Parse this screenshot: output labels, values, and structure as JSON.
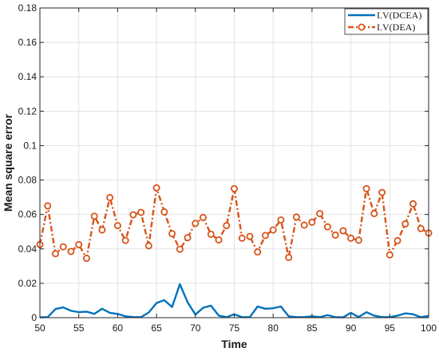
{
  "chart_data": {
    "type": "line",
    "title": "",
    "xlabel": "Time",
    "ylabel": "Mean square error",
    "xlim": [
      50,
      100
    ],
    "ylim": [
      0,
      0.18
    ],
    "xticks": [
      50,
      55,
      60,
      65,
      70,
      75,
      80,
      85,
      90,
      95,
      100
    ],
    "yticks": [
      0,
      0.02,
      0.04,
      0.06,
      0.08,
      0.1,
      0.12,
      0.14,
      0.16,
      0.18
    ],
    "xtick_labels": [
      "50",
      "55",
      "60",
      "65",
      "70",
      "75",
      "80",
      "85",
      "90",
      "95",
      "100"
    ],
    "ytick_labels": [
      "0",
      "0.02",
      "0.04",
      "0.06",
      "0.08",
      "0.1",
      "0.12",
      "0.14",
      "0.16",
      "0.18"
    ],
    "grid": true,
    "legend_position": "top-right",
    "x": [
      50,
      51,
      52,
      53,
      54,
      55,
      56,
      57,
      58,
      59,
      60,
      61,
      62,
      63,
      64,
      65,
      66,
      67,
      68,
      69,
      70,
      71,
      72,
      73,
      74,
      75,
      76,
      77,
      78,
      79,
      80,
      81,
      82,
      83,
      84,
      85,
      86,
      87,
      88,
      89,
      90,
      91,
      92,
      93,
      94,
      95,
      96,
      97,
      98,
      99,
      100
    ],
    "series": [
      {
        "name": "I.V(DCEA)",
        "color": "#0072BD",
        "style": "solid",
        "marker": "none",
        "values": [
          0.0002,
          0.0003,
          0.005,
          0.006,
          0.004,
          0.0032,
          0.0035,
          0.0022,
          0.0052,
          0.0028,
          0.0022,
          0.0008,
          0.0004,
          0.0003,
          0.003,
          0.0085,
          0.0102,
          0.0062,
          0.0195,
          0.009,
          0.0018,
          0.0058,
          0.007,
          0.0012,
          0.0003,
          0.002,
          0.0003,
          0.0003,
          0.0065,
          0.0052,
          0.0055,
          0.0065,
          0.0008,
          0.0003,
          0.0003,
          0.0008,
          0.0003,
          0.0015,
          0.0003,
          0.0002,
          0.0028,
          0.0004,
          0.0032,
          0.0012,
          0.0003,
          0.0003,
          0.0012,
          0.0025,
          0.002,
          0.0003,
          0.001
        ]
      },
      {
        "name": "I.V(DEA)",
        "color": "#D95319",
        "style": "dash-dot",
        "marker": "circle",
        "values": [
          0.0425,
          0.065,
          0.0372,
          0.0412,
          0.0385,
          0.0425,
          0.0345,
          0.059,
          0.051,
          0.0698,
          0.0535,
          0.0449,
          0.0598,
          0.0612,
          0.0418,
          0.0755,
          0.0615,
          0.0488,
          0.0398,
          0.0465,
          0.0548,
          0.0582,
          0.0485,
          0.0452,
          0.0535,
          0.075,
          0.0462,
          0.0472,
          0.0382,
          0.0478,
          0.051,
          0.0568,
          0.035,
          0.0585,
          0.0538,
          0.0555,
          0.0605,
          0.0528,
          0.048,
          0.0505,
          0.0462,
          0.045,
          0.075,
          0.0605,
          0.0728,
          0.0365,
          0.0448,
          0.0545,
          0.0662,
          0.0518,
          0.0492
        ]
      }
    ]
  }
}
